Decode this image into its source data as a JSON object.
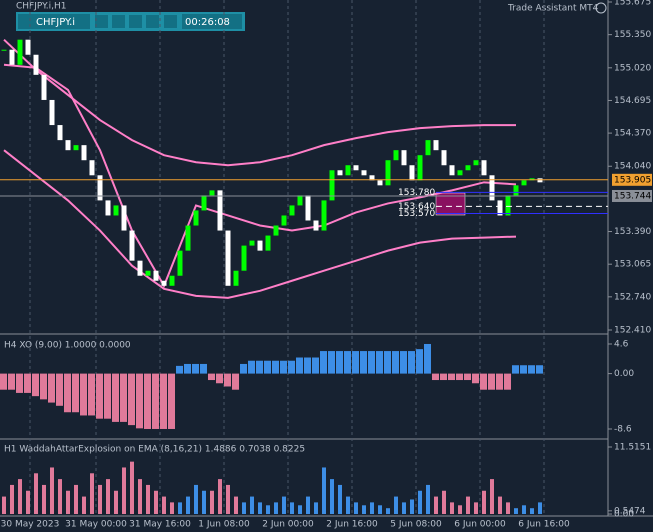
{
  "window": {
    "title": "CHFJPY.i,H1",
    "symbol_button": "CHFJPY.i",
    "timer": "00:26:08",
    "assistant": "Trade Assistant MT4"
  },
  "chart_data": [
    {
      "type": "candles",
      "name": "CHFJPY.i,H1",
      "values": [
        155.2,
        155.05,
        155.3,
        155.15,
        154.95,
        154.7,
        154.45,
        154.3,
        154.2,
        154.25,
        154.1,
        153.95,
        153.7,
        153.55,
        153.65,
        153.4,
        153.1,
        152.95,
        153.0,
        152.9,
        152.85,
        152.95,
        153.2,
        153.45,
        153.6,
        153.75,
        153.8,
        153.4,
        152.85,
        153.0,
        153.25,
        153.3,
        153.2,
        153.35,
        153.45,
        153.55,
        153.65,
        153.75,
        153.5,
        153.4,
        153.7,
        154.0,
        153.95,
        154.05,
        154.0,
        153.95,
        153.9,
        153.85,
        154.1,
        154.2,
        154.05,
        153.9,
        154.15,
        154.3,
        154.2,
        154.05,
        153.95,
        154.0,
        154.05,
        154.1,
        153.95,
        153.7,
        153.55,
        153.75,
        153.85,
        153.9,
        153.92,
        153.88
      ],
      "up_color": "#00ff00",
      "down_color": "#ffffff",
      "bands": [
        {
          "name": "upper",
          "color": "#ff7fc8",
          "values": [
            155.3,
            155.0,
            154.75,
            154.5,
            154.3,
            154.15,
            154.08,
            154.05,
            154.08,
            154.15,
            154.25,
            154.32,
            154.38,
            154.42,
            154.44,
            154.45,
            154.45
          ]
        },
        {
          "name": "middle",
          "color": "#ff7fc8",
          "values": [
            155.05,
            155.02,
            154.8,
            154.2,
            153.4,
            152.85,
            153.65,
            153.55,
            153.45,
            153.4,
            153.45,
            153.58,
            153.67,
            153.73,
            153.8,
            153.88,
            153.86
          ]
        },
        {
          "name": "lower",
          "color": "#ff7fc8",
          "values": [
            154.2,
            153.95,
            153.7,
            153.4,
            153.05,
            152.82,
            152.75,
            152.73,
            152.8,
            152.9,
            153.0,
            153.1,
            153.2,
            153.28,
            153.32,
            153.33,
            153.34
          ]
        }
      ],
      "ylim": [
        152.38,
        155.695
      ],
      "yticks": [
        155.675,
        {
          "value": 155.35,
          "label": "155.350"
        },
        {
          "value": 155.02,
          "label": "155.020"
        },
        154.695,
        {
          "value": 154.37,
          "label": "154.370"
        },
        {
          "value": 154.04,
          "label": "154.040"
        },
        {
          "value": 153.39,
          "label": "153.390"
        },
        153.065,
        {
          "value": 152.74,
          "label": "152.740"
        },
        {
          "value": 152.41,
          "label": "152.410"
        }
      ],
      "price_lines": [
        {
          "value": 153.905,
          "label": "153.905",
          "color": "#f0a030"
        },
        {
          "value": 153.744,
          "label": "153.744",
          "color": "#8a8f98"
        }
      ],
      "levels": [
        {
          "value": 153.78,
          "label": "153.780",
          "color": "#3030ff"
        },
        {
          "value": 153.64,
          "label": "153.640",
          "color": "#ffffff"
        },
        {
          "value": 153.57,
          "label": "153.570",
          "color": "#3030ff"
        }
      ],
      "xticks": [
        {
          "value": 3.25,
          "label": "30 May 2023"
        },
        {
          "value": 11.5,
          "label": "31 May 00:00"
        },
        {
          "value": 19.5,
          "label": "31 May 16:00"
        },
        {
          "value": 27.5,
          "label": "1 Jun 08:00"
        },
        {
          "value": 35.5,
          "label": "2 Jun 00:00"
        },
        {
          "value": 43.5,
          "label": "2 Jun 16:00"
        },
        {
          "value": 51.5,
          "label": "5 Jun 08:00"
        },
        {
          "value": 59.5,
          "label": "6 Jun 00:00"
        },
        {
          "value": 67.5,
          "label": "6 Jun 16:00"
        }
      ]
    },
    {
      "type": "histogram",
      "title": "H4 XO (9.00) 1.0000 0.0000",
      "pos_color": "#3d8ee6",
      "neg_color": "#e07a9a",
      "values": [
        -2.5,
        -2.5,
        -3,
        -3,
        -3.5,
        -4,
        -4.5,
        -5,
        -6,
        -6,
        -6.5,
        -6.5,
        -7,
        -7,
        -7.5,
        -7.5,
        -8,
        -8.5,
        -8.6,
        -8.6,
        -8.6,
        -8.6,
        1.2,
        1.5,
        1.5,
        1.5,
        -1,
        -1.5,
        -2,
        -2.5,
        1.5,
        2,
        2,
        2,
        2,
        2,
        2,
        2.5,
        2.5,
        2.5,
        3.5,
        3.5,
        3.5,
        3.5,
        3.5,
        3.5,
        3.5,
        3.5,
        3.5,
        3.5,
        3.5,
        3.5,
        3.8,
        4.6,
        -1,
        -1,
        -1,
        -1,
        -1,
        -1.5,
        -2.5,
        -2.5,
        -2.5,
        -2.5,
        1.3,
        1.3,
        1.3,
        1.3
      ],
      "ylim": [
        -10.0,
        5.84
      ],
      "yticks": [
        4.6,
        {
          "value": 0,
          "label": "0.00"
        },
        -8.6
      ]
    },
    {
      "type": "bar",
      "title": "H1 WaddahAttarExplosion on EMA (8,16,21) 1.4886 0.7038 0.8225",
      "series": [
        {
          "name": "up",
          "color": "#3d8ee6",
          "values": [
            null,
            null,
            null,
            null,
            null,
            null,
            null,
            null,
            null,
            null,
            null,
            null,
            null,
            null,
            null,
            null,
            null,
            null,
            null,
            null,
            null,
            null,
            2,
            3,
            5,
            4,
            null,
            null,
            null,
            null,
            2,
            3,
            2,
            1.5,
            2,
            3,
            2,
            1.5,
            3,
            2,
            8,
            6,
            5,
            3,
            2,
            1.5,
            2,
            1.5,
            1,
            3,
            2,
            2.5,
            4,
            5,
            null,
            null,
            null,
            null,
            null,
            null,
            null,
            null,
            null,
            null,
            1,
            1.5,
            1,
            2
          ]
        },
        {
          "name": "down",
          "color": "#e07a9a",
          "values": [
            3,
            5,
            6,
            4,
            7,
            5,
            8,
            6,
            4,
            5,
            3,
            7,
            5,
            6,
            4,
            8,
            9,
            6,
            5,
            4,
            3,
            2,
            null,
            null,
            null,
            null,
            4,
            6,
            5,
            3,
            null,
            null,
            null,
            null,
            null,
            null,
            null,
            null,
            null,
            null,
            null,
            null,
            null,
            null,
            null,
            null,
            null,
            null,
            null,
            null,
            null,
            null,
            null,
            null,
            3,
            4,
            2,
            1.5,
            3,
            2,
            4,
            6,
            3,
            2,
            null,
            null,
            null,
            null
          ]
        }
      ],
      "ylim": [
        -0.34,
        12.72
      ],
      "yticks": [
        11.5151,
        0.5474,
        {
          "value": 0,
          "label": "0.00"
        }
      ]
    }
  ]
}
